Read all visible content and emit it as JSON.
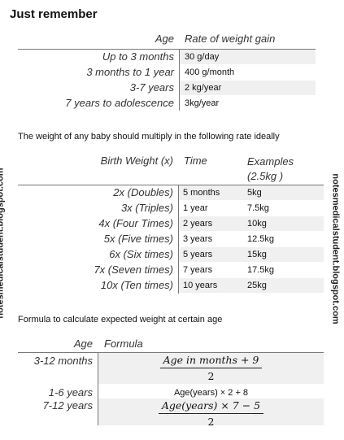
{
  "title": "Just remember",
  "table_1": {
    "headers": [
      "Age",
      "Rate of weight gain"
    ],
    "rows": [
      [
        "Up to 3 months",
        "30  g/day"
      ],
      [
        "3 months to 1 year",
        "400 g/month"
      ],
      [
        "3-7 years",
        "2 kg/year"
      ],
      [
        "7 years to adolescence",
        "3kg/year"
      ]
    ]
  },
  "note_1": "The weight of any baby should multiply in the following rate ideally",
  "table_2": {
    "headers": [
      "Birth Weight (x)",
      "Time",
      "Examples (2.5kg )"
    ],
    "rows": [
      [
        "2x (Doubles)",
        "5 months",
        "5kg"
      ],
      [
        "3x (Triples)",
        "1 year",
        "7.5kg"
      ],
      [
        "4x (Four Times)",
        "2 years",
        "10kg"
      ],
      [
        "5x (Five times)",
        "3 years",
        "12.5kg"
      ],
      [
        "6x (Six times)",
        "5 years",
        "15kg"
      ],
      [
        "7x (Seven times)",
        "7 years",
        "17.5kg"
      ],
      [
        "10x (Ten times)",
        "10 years",
        "25kg"
      ]
    ]
  },
  "note_2": "Formula to calculate expected weight at certain age",
  "table_3": {
    "headers": [
      "Age",
      "Formula"
    ],
    "rows": [
      {
        "age": "3-12 months",
        "numerator": "Age in months + 9",
        "denominator": "2"
      },
      {
        "age": "1-6 years",
        "formula": "Age(years) × 2 + 8"
      },
      {
        "age": "7-12 years",
        "numerator": "Age(years) × 7 − 5",
        "denominator": "2"
      }
    ]
  },
  "watermark": "notesmedicalstudent.blogspot.com"
}
